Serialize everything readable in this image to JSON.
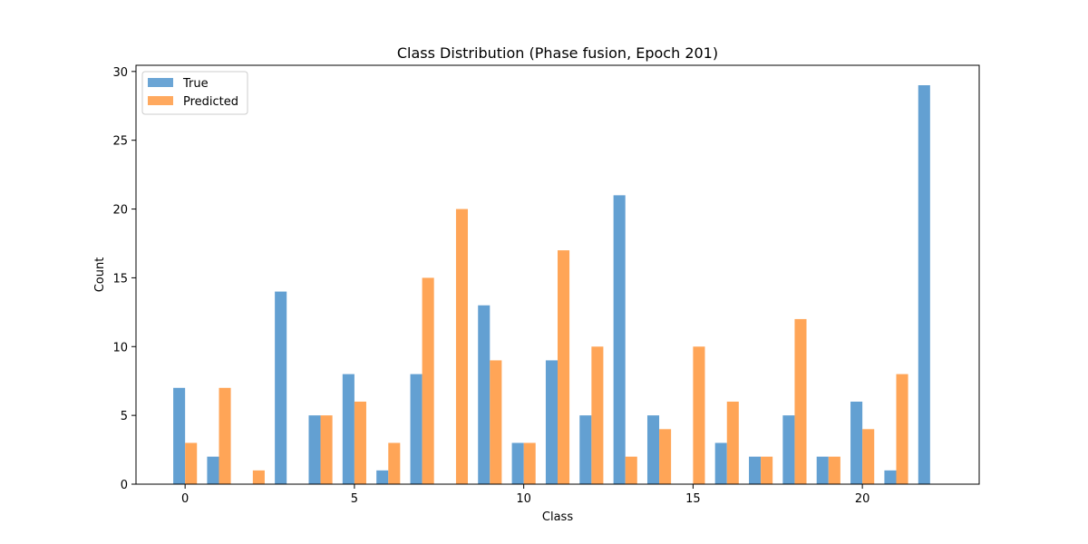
{
  "chart_data": {
    "type": "bar",
    "title": "Class Distribution (Phase fusion, Epoch 201)",
    "xlabel": "Class",
    "ylabel": "Count",
    "categories": [
      0,
      1,
      2,
      3,
      4,
      5,
      6,
      7,
      8,
      9,
      10,
      11,
      12,
      13,
      14,
      15,
      16,
      17,
      18,
      19,
      20,
      21,
      22
    ],
    "series": [
      {
        "name": "True",
        "color": "#5b9bd0",
        "values": [
          7,
          2,
          0,
          14,
          5,
          8,
          1,
          8,
          0,
          13,
          3,
          9,
          5,
          21,
          5,
          0,
          3,
          2,
          5,
          2,
          6,
          1,
          29
        ]
      },
      {
        "name": "Predicted",
        "color": "#ffa04e",
        "values": [
          3,
          7,
          1,
          0,
          5,
          6,
          3,
          15,
          20,
          9,
          3,
          17,
          10,
          2,
          4,
          10,
          6,
          2,
          12,
          2,
          4,
          8,
          0
        ]
      }
    ],
    "xlim": [
      -1.45,
      23.45
    ],
    "ylim": [
      0,
      30.45
    ],
    "xticks": [
      0,
      5,
      10,
      15,
      20
    ],
    "xtick_labels": [
      "0",
      "5",
      "10",
      "15",
      "20"
    ],
    "yticks": [
      0,
      5,
      10,
      15,
      20,
      25,
      30
    ],
    "ytick_labels": [
      "0",
      "5",
      "10",
      "15",
      "20",
      "25",
      "30"
    ],
    "legend_position": "top-left",
    "grid": false
  }
}
